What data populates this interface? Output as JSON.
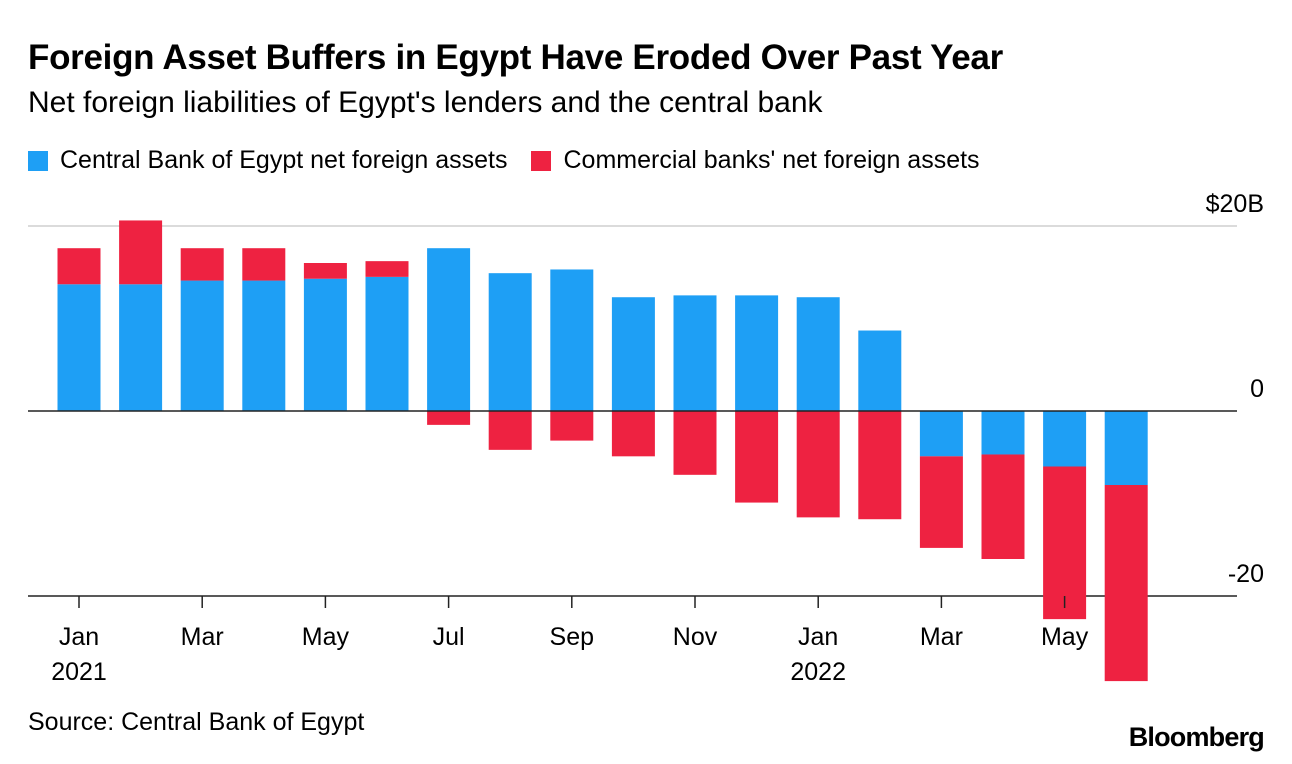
{
  "header": {
    "title": "Foreign Asset Buffers in Egypt Have Eroded Over Past Year",
    "subtitle": "Net foreign liabilities of Egypt's lenders and the central bank"
  },
  "footer": {
    "source": "Source: Central Bank of Egypt",
    "brand": "Bloomberg"
  },
  "colors": {
    "central_bank": "#1e9ff5",
    "commercial_banks": "#ee2241"
  },
  "chart_data": {
    "type": "bar",
    "stacked": true,
    "title": "Foreign Asset Buffers in Egypt Have Eroded Over Past Year",
    "subtitle": "Net foreign liabilities of Egypt's lenders and the central bank",
    "xlabel": "",
    "ylabel": "",
    "ylim": [
      -20,
      20
    ],
    "y_ticks": [
      {
        "value": 20,
        "label": "$20B"
      },
      {
        "value": 0,
        "label": "0"
      },
      {
        "value": -20,
        "label": "-20"
      }
    ],
    "grid": true,
    "legend_position": "top-left",
    "categories": [
      "2021-01",
      "2021-02",
      "2021-03",
      "2021-04",
      "2021-05",
      "2021-06",
      "2021-07",
      "2021-08",
      "2021-09",
      "2021-10",
      "2021-11",
      "2021-12",
      "2022-01",
      "2022-02",
      "2022-03",
      "2022-04",
      "2022-05",
      "2022-06"
    ],
    "x_ticks": [
      {
        "index": 0,
        "label": "Jan",
        "year": "2021"
      },
      {
        "index": 2,
        "label": "Mar",
        "year": ""
      },
      {
        "index": 4,
        "label": "May",
        "year": ""
      },
      {
        "index": 6,
        "label": "Jul",
        "year": ""
      },
      {
        "index": 8,
        "label": "Sep",
        "year": ""
      },
      {
        "index": 10,
        "label": "Nov",
        "year": ""
      },
      {
        "index": 12,
        "label": "Jan",
        "year": "2022"
      },
      {
        "index": 14,
        "label": "Mar",
        "year": ""
      },
      {
        "index": 16,
        "label": "May",
        "year": ""
      }
    ],
    "series": [
      {
        "name": "Central Bank of Egypt net foreign assets",
        "color": "#1e9ff5",
        "values": [
          13.7,
          13.7,
          14.1,
          14.1,
          14.3,
          14.5,
          17.6,
          14.9,
          15.3,
          12.3,
          12.5,
          12.5,
          12.3,
          8.7,
          -4.9,
          -4.7,
          -6.0,
          -8.0
        ]
      },
      {
        "name": "Commercial banks' net foreign assets",
        "color": "#ee2241",
        "values": [
          3.9,
          6.9,
          3.5,
          3.5,
          1.7,
          1.7,
          -1.5,
          -4.2,
          -3.2,
          -4.9,
          -6.9,
          -9.9,
          -11.5,
          -11.7,
          -9.9,
          -11.3,
          -16.5,
          -21.2
        ]
      }
    ]
  }
}
